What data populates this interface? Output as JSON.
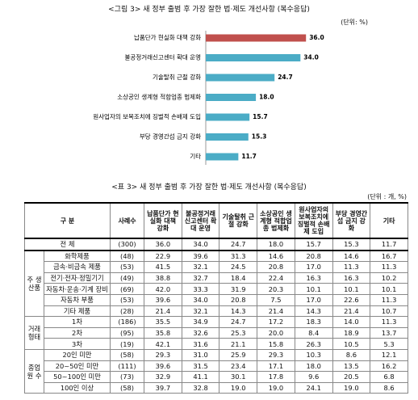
{
  "chart_data": {
    "type": "bar",
    "orientation": "horizontal",
    "title": "<그림 3> 새 정부 출범 후 가장 잘한 법·제도 개선사항 (복수응답)",
    "unit": "(단위: %)",
    "categories": [
      "납품단가 현실화 대책 강화",
      "불공정거래신고센터 확대 운영",
      "기술탈취 근절 강화",
      "소상공인 생계형 적합업종 법제화",
      "원사업자의 보복조치에 징벌적 손배제 도입",
      "부당 경영간섭 금지 강화",
      "기타"
    ],
    "values": [
      36.0,
      34.0,
      24.7,
      18.0,
      15.7,
      15.3,
      11.7
    ],
    "value_labels": [
      "36.0",
      "34.0",
      "24.7",
      "18.0",
      "15.7",
      "15.3",
      "11.7"
    ],
    "colors": [
      "#c0504d",
      "#4bacc6",
      "#4bacc6",
      "#4bacc6",
      "#4bacc6",
      "#4bacc6",
      "#4bacc6"
    ]
  },
  "table": {
    "title": "<표 3> 새 정부 출범 후 가장 잘한 법·제도 개선사항 (복수응답)",
    "unit": "(단위 : 개, %)",
    "headers": [
      "구 분",
      "사례수",
      "납품단가 현실화 대책 강화",
      "불공정거래 신고센터 확대 운영",
      "기술탈취 근절 강화",
      "소상공인 생계형 적합업종 법제화",
      "원사업자의 보복조치에 징벌적 손배제 도입",
      "부당 경영간섭 금지 강화",
      "기타"
    ],
    "total": {
      "label": "전 체",
      "cells": [
        "(300)",
        "36.0",
        "34.0",
        "24.7",
        "18.0",
        "15.7",
        "15.3",
        "11.7"
      ]
    },
    "groups": [
      {
        "label": "주 생산품",
        "rows": [
          {
            "label": "화학제품",
            "cells": [
              "(48)",
              "22.9",
              "39.6",
              "31.3",
              "14.6",
              "20.8",
              "14.6",
              "16.7"
            ]
          },
          {
            "label": "금속·비금속 제품",
            "cells": [
              "(53)",
              "41.5",
              "32.1",
              "24.5",
              "20.8",
              "17.0",
              "11.3",
              "11.3"
            ]
          },
          {
            "label": "전기·전자·정밀기기",
            "cells": [
              "(49)",
              "38.8",
              "32.7",
              "18.4",
              "22.4",
              "16.3",
              "16.3",
              "10.2"
            ]
          },
          {
            "label": "자동차·운송·기계 장비",
            "cells": [
              "(69)",
              "42.0",
              "33.3",
              "31.9",
              "20.3",
              "10.1",
              "10.1",
              "10.1"
            ]
          },
          {
            "label": "자동차 부품",
            "cells": [
              "(53)",
              "39.6",
              "34.0",
              "20.8",
              "7.5",
              "17.0",
              "22.6",
              "11.3"
            ]
          },
          {
            "label": "기타 제품",
            "cells": [
              "(28)",
              "21.4",
              "32.1",
              "14.3",
              "21.4",
              "14.3",
              "21.4",
              "10.7"
            ]
          }
        ]
      },
      {
        "label": "거래 형태",
        "rows": [
          {
            "label": "1차",
            "cells": [
              "(186)",
              "35.5",
              "34.9",
              "24.7",
              "17.2",
              "18.3",
              "14.0",
              "11.3"
            ]
          },
          {
            "label": "2차",
            "cells": [
              "(95)",
              "35.8",
              "32.6",
              "25.3",
              "20.0",
              "8.4",
              "18.9",
              "13.7"
            ]
          },
          {
            "label": "3차",
            "cells": [
              "(19)",
              "42.1",
              "31.6",
              "21.1",
              "15.8",
              "26.3",
              "10.5",
              "5.3"
            ]
          }
        ]
      },
      {
        "label": "종업원 수",
        "rows": [
          {
            "label": "20인 미만",
            "cells": [
              "(58)",
              "29.3",
              "31.0",
              "25.9",
              "29.3",
              "10.3",
              "8.6",
              "12.1"
            ]
          },
          {
            "label": "20~50인 미만",
            "cells": [
              "(111)",
              "39.6",
              "31.5",
              "23.4",
              "17.1",
              "18.0",
              "13.5",
              "16.2"
            ]
          },
          {
            "label": "50~100인 미만",
            "cells": [
              "(73)",
              "32.9",
              "41.1",
              "30.1",
              "17.8",
              "9.6",
              "20.5",
              "6.8"
            ]
          },
          {
            "label": "100인 이상",
            "cells": [
              "(58)",
              "39.7",
              "32.8",
              "19.0",
              "19.0",
              "24.1",
              "19.0",
              "8.6"
            ]
          }
        ]
      }
    ]
  }
}
